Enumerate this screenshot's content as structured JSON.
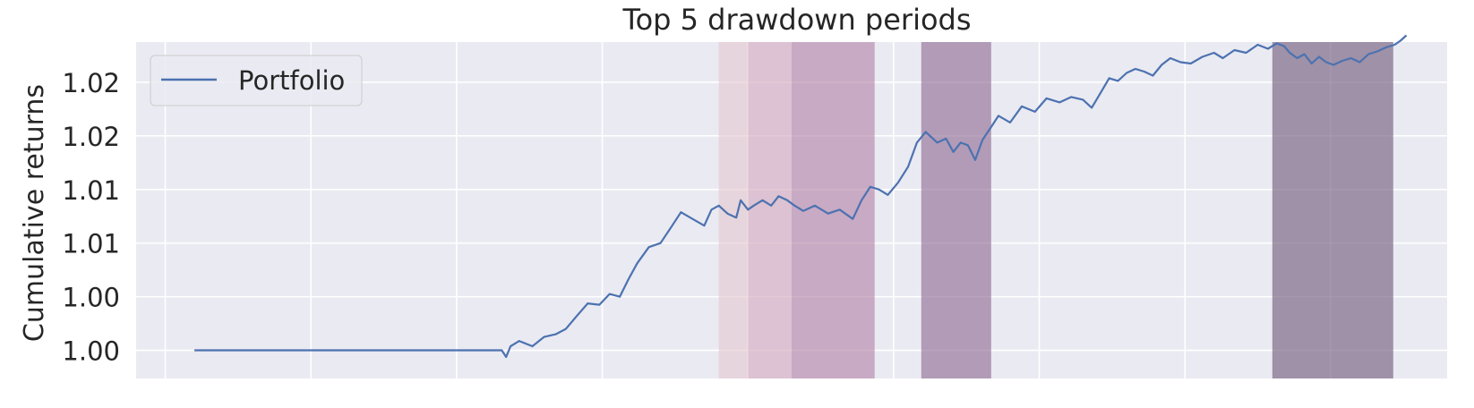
{
  "chart_data": {
    "type": "line",
    "title": "Top 5 drawdown periods",
    "xlabel": "",
    "ylabel": "Cumulative returns",
    "y_tick_labels": [
      "1.00",
      "1.00",
      "1.01",
      "1.01",
      "1.02",
      "1.02"
    ],
    "y_ticks": [
      1.0,
      1.004,
      1.008,
      1.012,
      1.016,
      1.02
    ],
    "ylim": [
      0.9979,
      1.023
    ],
    "xlim": [
      -20,
      880
    ],
    "x_gridlines": [
      0,
      100,
      200,
      300,
      400,
      500,
      600,
      700,
      800
    ],
    "grid": true,
    "legend": {
      "position": "top-left",
      "entries": [
        "Portfolio"
      ]
    },
    "colors": {
      "background": "#eaeaf2",
      "grid": "#ffffff",
      "line": "#4c72b0",
      "drawdowns": [
        "#e4c6cf",
        "#d2a6bd",
        "#b07ea5",
        "#8a6590",
        "#6a5577"
      ]
    },
    "drawdowns": [
      {
        "rank": 5,
        "start": 380,
        "end": 400
      },
      {
        "rank": 4,
        "start": 400,
        "end": 430
      },
      {
        "rank": 3,
        "start": 430,
        "end": 487
      },
      {
        "rank": 2,
        "start": 519,
        "end": 567
      },
      {
        "rank": 1,
        "start": 760,
        "end": 843
      }
    ],
    "series": [
      {
        "name": "Portfolio",
        "x": [
          20,
          60,
          100,
          140,
          180,
          200,
          231,
          234,
          237,
          243,
          252,
          260,
          268,
          275,
          282,
          290,
          298,
          305,
          312,
          318,
          324,
          332,
          340,
          348,
          354,
          362,
          370,
          375,
          380,
          386,
          392,
          395,
          400,
          404,
          410,
          416,
          421,
          427,
          432,
          438,
          446,
          455,
          463,
          472,
          478,
          484,
          490,
          496,
          503,
          510,
          516,
          522,
          525,
          530,
          536,
          541,
          546,
          551,
          556,
          561,
          566,
          572,
          580,
          588,
          597,
          605,
          614,
          622,
          630,
          636,
          642,
          648,
          654,
          660,
          666,
          672,
          678,
          684,
          690,
          697,
          704,
          712,
          720,
          726,
          734,
          742,
          750,
          757,
          763,
          768,
          772,
          777,
          782,
          787,
          792,
          797,
          802,
          808,
          814,
          820,
          826,
          832,
          838,
          844,
          848,
          852
        ],
        "y": [
          1.0,
          1.0,
          1.0,
          1.0,
          1.0,
          1.0,
          1.0,
          0.9995,
          1.0003,
          1.0007,
          1.0003,
          1.001,
          1.0012,
          1.0016,
          1.0025,
          1.0035,
          1.0034,
          1.0042,
          1.004,
          1.0053,
          1.0065,
          1.0077,
          1.008,
          1.0093,
          1.0103,
          1.0098,
          1.0093,
          1.0105,
          1.0108,
          1.0102,
          1.0099,
          1.0112,
          1.0105,
          1.0108,
          1.0112,
          1.0108,
          1.0115,
          1.0112,
          1.0108,
          1.0104,
          1.0108,
          1.0102,
          1.0105,
          1.0098,
          1.0112,
          1.0122,
          1.012,
          1.0116,
          1.0125,
          1.0137,
          1.0155,
          1.0163,
          1.016,
          1.0155,
          1.0158,
          1.0148,
          1.0155,
          1.0153,
          1.0142,
          1.0157,
          1.0165,
          1.0175,
          1.017,
          1.0182,
          1.0178,
          1.0188,
          1.0185,
          1.0189,
          1.0187,
          1.0181,
          1.0192,
          1.0203,
          1.0201,
          1.0207,
          1.021,
          1.0208,
          1.0205,
          1.0213,
          1.0218,
          1.0215,
          1.0214,
          1.0219,
          1.0222,
          1.0218,
          1.0224,
          1.0222,
          1.0228,
          1.0225,
          1.0229,
          1.0227,
          1.0222,
          1.0218,
          1.0221,
          1.0214,
          1.0219,
          1.0215,
          1.0213,
          1.0216,
          1.0218,
          1.0215,
          1.0221,
          1.0223,
          1.0226,
          1.0228,
          1.0231,
          1.0235
        ]
      }
    ]
  }
}
